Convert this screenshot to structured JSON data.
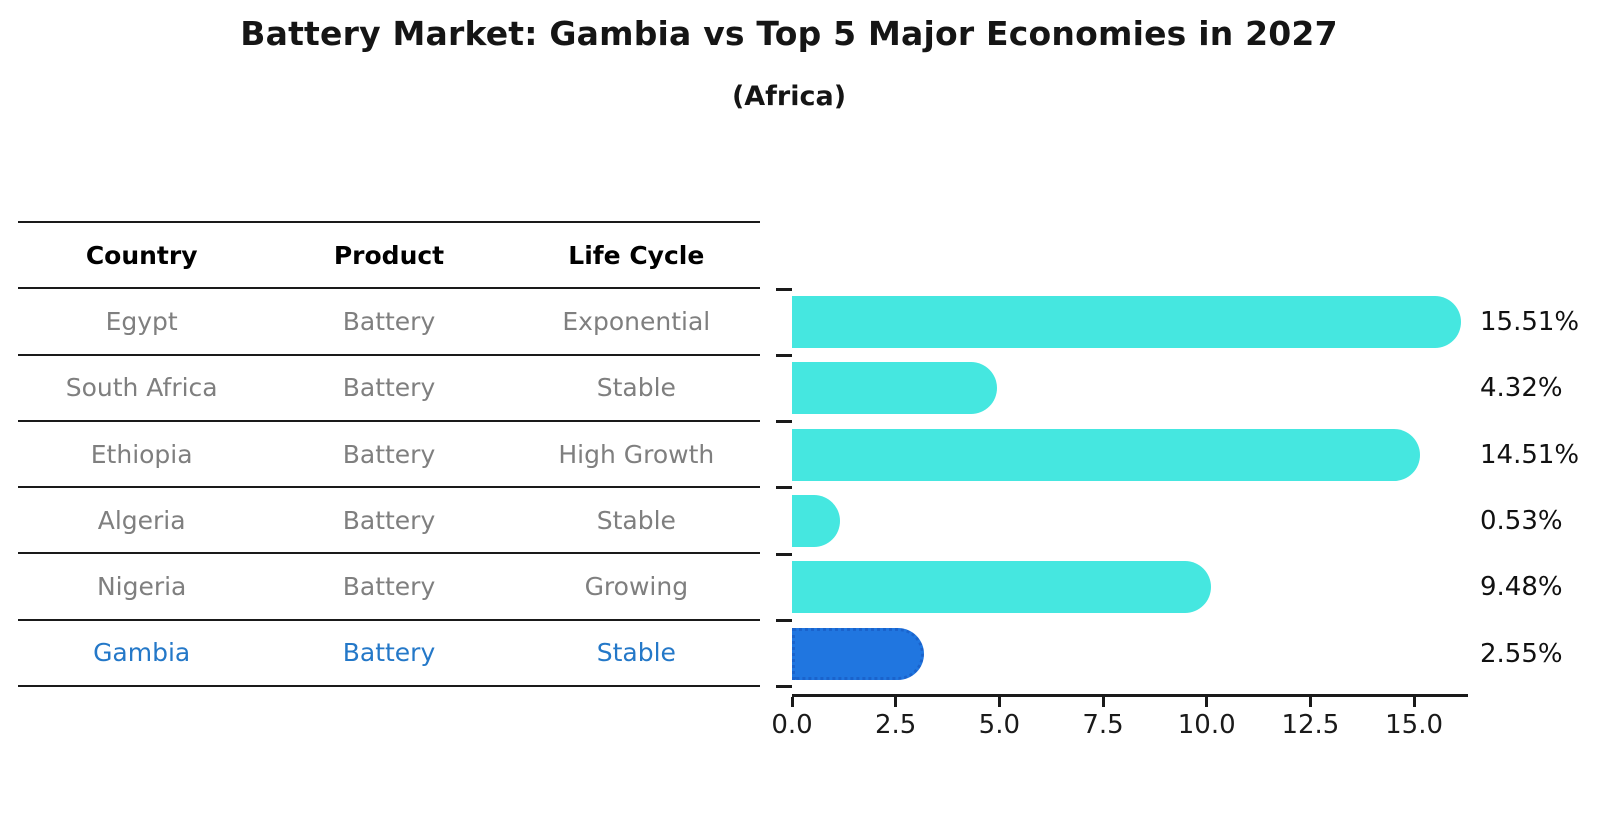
{
  "header": {
    "title": "Battery Market: Gambia vs Top 5 Major Economies in 2027",
    "subtitle": "(Africa)"
  },
  "table": {
    "headers": [
      "Country",
      "Product",
      "Life Cycle"
    ],
    "rows": [
      {
        "country": "Egypt",
        "product": "Battery",
        "life_cycle": "Exponential",
        "highlight": false
      },
      {
        "country": "South Africa",
        "product": "Battery",
        "life_cycle": "Stable",
        "highlight": false
      },
      {
        "country": "Ethiopia",
        "product": "Battery",
        "life_cycle": "High Growth",
        "highlight": false
      },
      {
        "country": "Algeria",
        "product": "Battery",
        "life_cycle": "Stable",
        "highlight": false
      },
      {
        "country": "Nigeria",
        "product": "Battery",
        "life_cycle": "Growing",
        "highlight": false
      },
      {
        "country": "Gambia",
        "product": "Battery",
        "life_cycle": "Stable",
        "highlight": true
      }
    ]
  },
  "chart_data": {
    "type": "bar",
    "orientation": "horizontal",
    "title": "Battery Market: Gambia vs Top 5 Major Economies in 2027",
    "subtitle": "(Africa)",
    "categories": [
      "Egypt",
      "South Africa",
      "Ethiopia",
      "Algeria",
      "Nigeria",
      "Gambia"
    ],
    "values": [
      15.51,
      4.32,
      14.51,
      0.53,
      9.48,
      2.55
    ],
    "value_labels": [
      "15.51%",
      "4.32%",
      "14.51%",
      "0.53%",
      "9.48%",
      "2.55%"
    ],
    "unit": "%",
    "highlight_category": "Gambia",
    "highlight_index": 5,
    "xlim": [
      0,
      16.3
    ],
    "x_ticks": [
      0,
      2.5,
      5,
      7.5,
      10,
      12.5,
      15
    ],
    "x_tick_labels": [
      "0.0",
      "2.5",
      "5.0",
      "7.5",
      "10.0",
      "12.5",
      "15.0"
    ],
    "xlabel": "",
    "ylabel": "",
    "grid": false,
    "legend": false
  },
  "colors": {
    "bar_default": "#45e7e0",
    "bar_highlight": "#2076e0",
    "bar_highlight_border": "#1a63cc",
    "highlight_text": "#2478c8",
    "row_text": "#7f7f7f",
    "header_text": "#000000",
    "axis_line": "#1a1a1a"
  }
}
